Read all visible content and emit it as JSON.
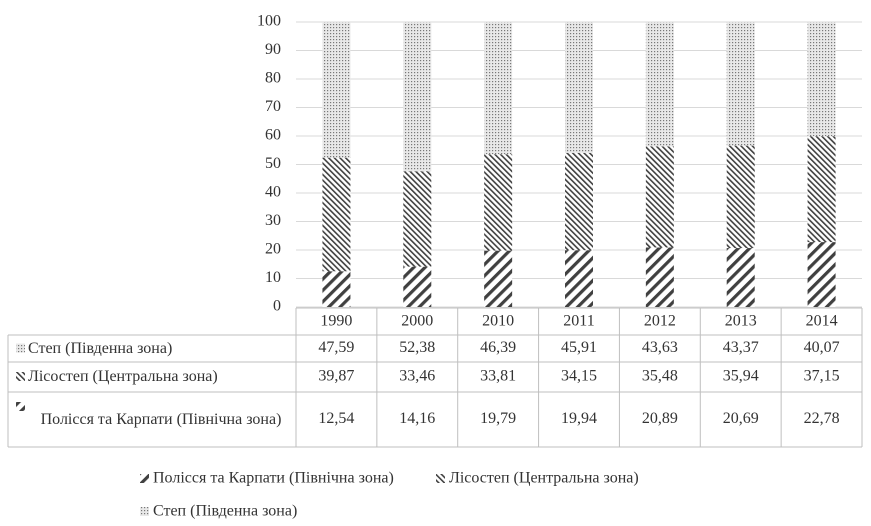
{
  "chart_data": {
    "type": "bar",
    "stacked": true,
    "categories": [
      "1990",
      "2000",
      "2010",
      "2011",
      "2012",
      "2013",
      "2014"
    ],
    "series": [
      {
        "name": "Полісся та Карпати (Північна зона)",
        "pattern": "wide-diagonal",
        "color": "#404040",
        "values": [
          12.54,
          14.16,
          19.79,
          19.94,
          20.89,
          20.69,
          22.78
        ],
        "value_labels": [
          "12,54",
          "14,16",
          "19,79",
          "19,94",
          "20,89",
          "20,69",
          "22,78"
        ]
      },
      {
        "name": "Лісостеп (Центральна зона)",
        "pattern": "dense-diagonal",
        "color": "#404040",
        "values": [
          39.87,
          33.46,
          33.81,
          34.15,
          35.48,
          35.94,
          37.15
        ],
        "value_labels": [
          "39,87",
          "33,46",
          "33,81",
          "34,15",
          "35,48",
          "35,94",
          "37,15"
        ]
      },
      {
        "name": "Степ (Південна зона)",
        "pattern": "dots",
        "color": "#404040",
        "values": [
          47.59,
          52.38,
          46.39,
          45.91,
          43.63,
          43.37,
          40.07
        ],
        "value_labels": [
          "47,59",
          "52,38",
          "46,39",
          "45,91",
          "43,63",
          "43,37",
          "40,07"
        ]
      }
    ],
    "ylim": [
      0,
      100
    ],
    "yticks": [
      0,
      10,
      20,
      30,
      40,
      50,
      60,
      70,
      80,
      90,
      100
    ],
    "grid": true,
    "data_table": true,
    "legend": "bottom"
  }
}
